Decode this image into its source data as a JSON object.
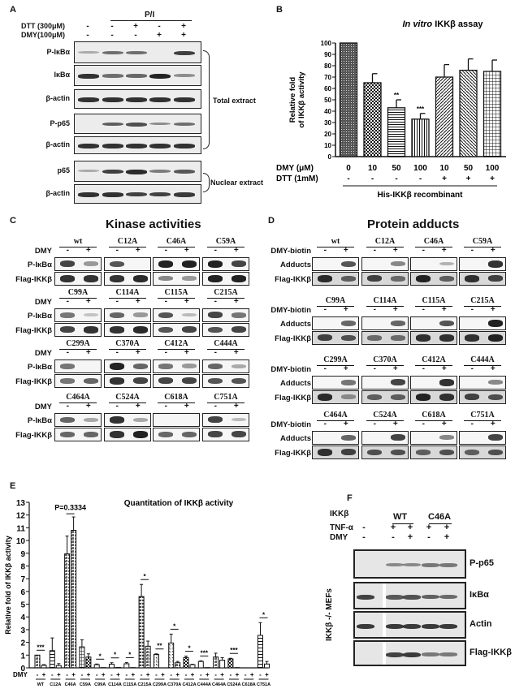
{
  "panelA": {
    "letter": "A",
    "group_label": "P/I",
    "conditions": [
      {
        "label": "DTT (300μM)",
        "values": [
          "-",
          "-",
          "+",
          "-",
          "+"
        ]
      },
      {
        "label": "DMY(100μM)",
        "values": [
          "-",
          "-",
          "-",
          "+",
          "+"
        ]
      }
    ],
    "rows": [
      "P-IκBα",
      "IκBα",
      "β-actin",
      "P-p65",
      "β-actin",
      "p65",
      "β-actin"
    ],
    "bracket_total": "Total extract",
    "bracket_nuclear": "Nuclear extract"
  },
  "panelB": {
    "letter": "B",
    "dmy_label": "DMY (μM)",
    "dtt_label": "DTT (1mM)",
    "dtt_values": [
      "-",
      "-",
      "-",
      "-",
      "+",
      "+",
      "+"
    ],
    "footer": "His-IKKβ recombinant"
  },
  "panelC": {
    "letter": "C",
    "title": "Kinase activities",
    "treatment_label": "DMY",
    "row_labels": [
      "P-IκBα",
      "Flag-IKKβ"
    ],
    "groups": [
      [
        "wt",
        "C12A",
        "C46A",
        "C59A"
      ],
      [
        "C99A",
        "C114A",
        "C115A",
        "C215A"
      ],
      [
        "C299A",
        "C370A",
        "C412A",
        "C444A"
      ],
      [
        "C464A",
        "C524A",
        "C618A",
        "C751A"
      ]
    ],
    "signs": [
      "-",
      "+"
    ]
  },
  "panelD": {
    "letter": "D",
    "title": "Protein adducts",
    "treatment_label": "DMY-biotin",
    "row_labels": [
      "Adducts",
      "Flag-IKKβ"
    ],
    "groups": [
      [
        "wt",
        "C12A",
        "C46A",
        "C59A"
      ],
      [
        "C99A",
        "C114A",
        "C115A",
        "C215A"
      ],
      [
        "C299A",
        "C370A",
        "C412A",
        "C444A"
      ],
      [
        "C464A",
        "C524A",
        "C618A",
        "C751A"
      ]
    ],
    "signs": [
      "-",
      "+"
    ]
  },
  "panelE": {
    "letter": "E",
    "p_annotation": "P=0.3334",
    "dmy_label": "DMY"
  },
  "panelF": {
    "letter": "F",
    "conditions": [
      {
        "label": "IKKβ",
        "values": [
          "",
          "WT",
          "",
          "C46A",
          ""
        ]
      },
      {
        "label": "TNF-α",
        "values": [
          "-",
          "+",
          "+",
          "+",
          "+"
        ]
      },
      {
        "label": "DMY",
        "values": [
          "-",
          "-",
          "+",
          "-",
          "+"
        ]
      }
    ],
    "side_label": "IKKβ -/- MEFs",
    "rows": [
      "P-p65",
      "IκBα",
      "Actin",
      "Flag-IKKβ"
    ]
  },
  "chart_data": [
    {
      "type": "bar",
      "title": "In vitro IKKβ assay",
      "xlabel": "DMY (μM) / DTT (1mM)",
      "ylabel": "Relative fold of IKKβ activity",
      "categories": [
        "0 / -",
        "10 / -",
        "50 / -",
        "100 / -",
        "10 / +",
        "50 / +",
        "100 / +"
      ],
      "values": [
        100,
        65,
        43,
        33,
        70,
        76,
        75
      ],
      "errors": [
        0,
        8,
        7,
        5,
        11,
        10,
        10
      ],
      "significance": [
        "",
        "",
        "**",
        "***",
        "",
        "",
        ""
      ],
      "ylim": [
        0,
        100
      ],
      "yticks": [
        0,
        10,
        20,
        30,
        40,
        50,
        60,
        70,
        80,
        90,
        100
      ],
      "grid": false,
      "legend": "none"
    },
    {
      "type": "bar",
      "title": "Quantitation of IKKβ activity",
      "xlabel": "DMY",
      "ylabel": "Relative fold of IKKβ activity",
      "categories": [
        "WT",
        "C12A",
        "C46A",
        "C59A",
        "C99A",
        "C114A",
        "C115A",
        "C215A",
        "C299A",
        "C370A",
        "C412A",
        "C444A",
        "C464A",
        "C524A",
        "C618A",
        "C751A"
      ],
      "series": [
        {
          "name": "DMY -",
          "values": [
            1.0,
            1.35,
            8.95,
            1.65,
            0.25,
            0.28,
            0.32,
            5.6,
            1.05,
            1.95,
            0.8,
            0.5,
            0.85,
            0.7,
            0.0,
            2.55
          ],
          "errors": [
            0,
            1.0,
            1.4,
            0.55,
            0.05,
            0.12,
            0.1,
            0.95,
            0.05,
            0.7,
            0.12,
            0.05,
            0.3,
            0.05,
            0,
            1.0
          ]
        },
        {
          "name": "DMY +",
          "values": [
            0.2,
            0.18,
            10.8,
            0.85,
            0.02,
            0.03,
            0.02,
            1.7,
            0.0,
            0.4,
            0.25,
            0.02,
            0.6,
            0.02,
            0.0,
            0.3
          ],
          "errors": [
            0.05,
            0.15,
            1.05,
            0.25,
            0,
            0,
            0,
            0.4,
            0,
            0.1,
            0.03,
            0,
            0.2,
            0,
            0,
            0.2
          ]
        }
      ],
      "significance": [
        "***",
        "",
        "P=0.3334",
        "",
        "*",
        "*",
        "*",
        "*",
        "**",
        "*",
        "*",
        "***",
        "",
        "***",
        "",
        "*"
      ],
      "ylim": [
        0,
        13
      ],
      "yticks": [
        0,
        1,
        2,
        3,
        4,
        5,
        6,
        7,
        8,
        9,
        10,
        11,
        12,
        13
      ],
      "grid": false,
      "legend": "none"
    }
  ]
}
